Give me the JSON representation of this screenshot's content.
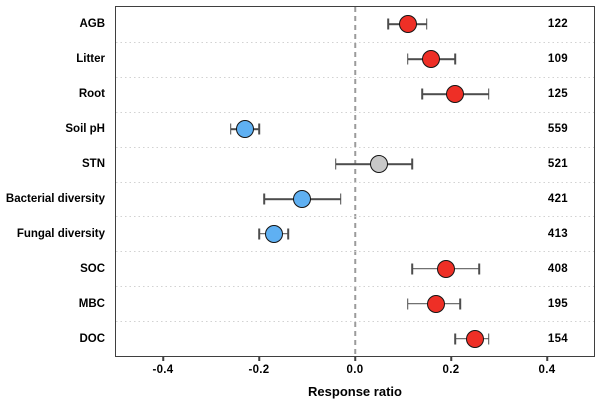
{
  "chart_data": {
    "type": "scatter",
    "subtype": "forest-dot-plot-with-error-bars",
    "title": "",
    "xlabel": "Response ratio",
    "ylabel": "",
    "xlim": [
      -0.5,
      0.5
    ],
    "grid": "dotted horizontal separators between categories",
    "legend_position": "none",
    "zero_reference_line": 0,
    "xticks": [
      {
        "value": -0.4,
        "label": "-0.4"
      },
      {
        "value": -0.2,
        "label": "-0.2"
      },
      {
        "value": 0.0,
        "label": "0.0"
      },
      {
        "value": 0.2,
        "label": "0.2"
      },
      {
        "value": 0.4,
        "label": "0.4"
      }
    ],
    "rows": [
      {
        "label": "AGB",
        "mean": 0.11,
        "ci_low": 0.07,
        "ci_high": 0.15,
        "n": 122,
        "color": "red"
      },
      {
        "label": "Litter",
        "mean": 0.16,
        "ci_low": 0.11,
        "ci_high": 0.21,
        "n": 109,
        "color": "red"
      },
      {
        "label": "Root",
        "mean": 0.21,
        "ci_low": 0.14,
        "ci_high": 0.28,
        "n": 125,
        "color": "red"
      },
      {
        "label": "Soil pH",
        "mean": -0.23,
        "ci_low": -0.26,
        "ci_high": -0.2,
        "n": 559,
        "color": "blue"
      },
      {
        "label": "STN",
        "mean": 0.05,
        "ci_low": -0.04,
        "ci_high": 0.12,
        "n": 521,
        "color": "gray"
      },
      {
        "label": "Bacterial diversity",
        "mean": -0.11,
        "ci_low": -0.19,
        "ci_high": -0.03,
        "n": 421,
        "color": "blue"
      },
      {
        "label": "Fungal diversity",
        "mean": -0.17,
        "ci_low": -0.2,
        "ci_high": -0.14,
        "n": 413,
        "color": "blue"
      },
      {
        "label": "SOC",
        "mean": 0.19,
        "ci_low": 0.12,
        "ci_high": 0.26,
        "n": 408,
        "color": "red"
      },
      {
        "label": "MBC",
        "mean": 0.17,
        "ci_low": 0.11,
        "ci_high": 0.22,
        "n": 195,
        "color": "red"
      },
      {
        "label": "DOC",
        "mean": 0.25,
        "ci_low": 0.21,
        "ci_high": 0.28,
        "n": 154,
        "color": "red"
      }
    ],
    "colors": {
      "red": "#ee2f26",
      "blue": "#5fb0f2",
      "gray": "#c8c8c8",
      "dot_border": "#141414",
      "errorbar": "#4d4d4d",
      "zero_line": "#9b9b9b",
      "gridline": "#d2d2d2",
      "axis_border": "#3f3f3f",
      "text": "#000000"
    }
  }
}
